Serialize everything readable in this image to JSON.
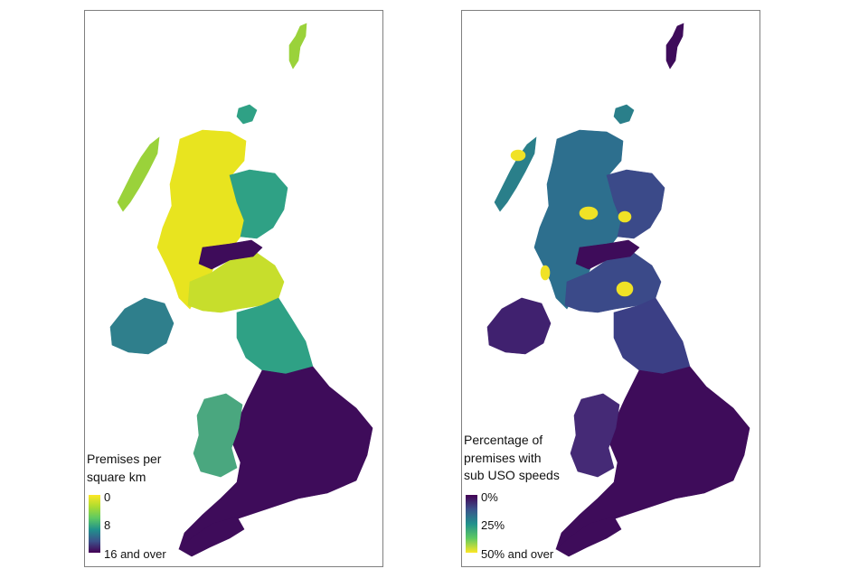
{
  "maps": [
    {
      "legend": {
        "title": "Premises per\nsquare km",
        "ticks": [
          "0",
          "8",
          "16 and over"
        ],
        "gradient": [
          "#fde725",
          "#addc30",
          "#5ec962",
          "#21918c",
          "#3b528b",
          "#440154"
        ]
      },
      "colors": {
        "highlands": "#e8e41f",
        "islands": "#9ad23a",
        "borders": "#c7de2c",
        "mid": "#2fa185",
        "dark": "#3e0c5a",
        "ni": "#2f7f8c",
        "wales": "#4aa77f"
      }
    },
    {
      "legend": {
        "title": "Percentage of\npremises with\nsub USO speeds",
        "ticks": [
          "0%",
          "25%",
          "50% and over"
        ],
        "gradient": [
          "#440154",
          "#3b528b",
          "#21918c",
          "#5ec962",
          "#fde725"
        ]
      },
      "colors": {
        "highlands": "#2d6f8e",
        "islands": "#2a7f8a",
        "borders": "#3b4a89",
        "mid": "#3b3f85",
        "dark": "#3e0c5a",
        "ni": "#40216f",
        "wales": "#452a76",
        "hotspot": "#f0e226"
      }
    }
  ]
}
